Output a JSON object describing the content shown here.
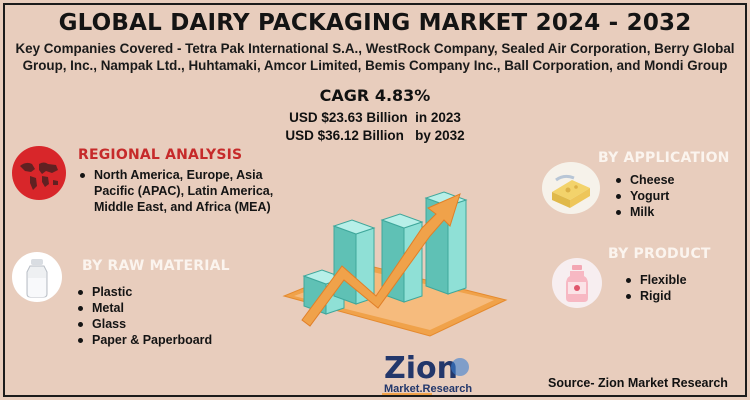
{
  "title": "GLOBAL DAIRY PACKAGING MARKET 2024 - 2032",
  "companies": "Key Companies Covered - Tetra Pak International S.A., WestRock Company, Sealed Air Corporation, Berry Global Group, Inc., Nampak Ltd., Huhtamaki, Amcor Limited, Bemis Company Inc., Ball Corporation, and Mondi Group",
  "cagr": "CAGR 4.83%",
  "usd_2023": "USD $23.63 Billion  in 2023",
  "usd_2032": "USD $36.12 Billion   by 2032",
  "regional": {
    "title": "REGIONAL ANALYSIS",
    "items": [
      "North America, Europe, Asia Pacific (APAC), Latin America, Middle East, and Africa (MEA)"
    ]
  },
  "raw_material": {
    "title": "BY RAW MATERIAL",
    "items": [
      "Plastic",
      "Metal",
      "Glass",
      "Paper & Paperboard"
    ]
  },
  "application": {
    "title": "BY APPLICATION",
    "items": [
      "Cheese",
      "Yogurt",
      "Milk"
    ]
  },
  "product": {
    "title": "BY PRODUCT",
    "items": [
      "Flexible",
      "Rigid"
    ]
  },
  "logo": {
    "line1": "Zion",
    "line2": "Market.Research"
  },
  "source": "Source- Zion Market Research",
  "colors": {
    "background": "#e8cdbd",
    "accent_red": "#c62a2a",
    "bar_teal": "#6fd0c4",
    "arrow_orange": "#f0a24a"
  }
}
